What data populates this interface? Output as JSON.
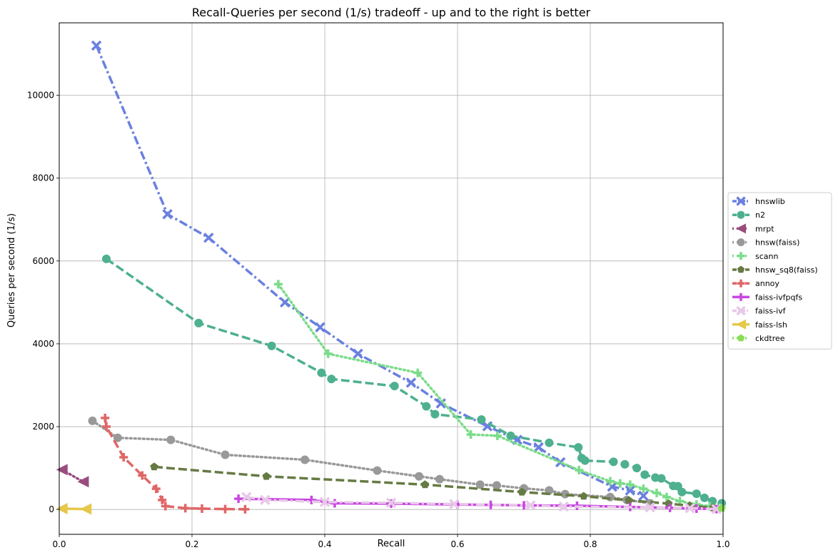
{
  "chart_data": {
    "type": "line",
    "title": "Recall-Queries per second (1/s) tradeoff - up and to the right is better",
    "xlabel": "Recall",
    "ylabel": "Queries per second (1/s)",
    "xlim": [
      0.0,
      1.0
    ],
    "ylim": [
      -600,
      11750
    ],
    "xticks": [
      0.0,
      0.2,
      0.4,
      0.6,
      0.8,
      1.0
    ],
    "xtick_labels": [
      "0.0",
      "0.2",
      "0.4",
      "0.6",
      "0.8",
      "1.0"
    ],
    "yticks": [
      0,
      2000,
      4000,
      6000,
      8000,
      10000
    ],
    "ytick_labels": [
      "0",
      "2000",
      "4000",
      "6000",
      "8000",
      "10000"
    ],
    "grid": true,
    "legend_position": "right",
    "series": [
      {
        "name": "hnswlib",
        "color": "#6a80e0",
        "dash": "dashdot",
        "marker": "x",
        "x": [
          0.056,
          0.163,
          0.225,
          0.34,
          0.393,
          0.45,
          0.53,
          0.575,
          0.645,
          0.69,
          0.722,
          0.755,
          0.833,
          0.86,
          0.88
        ],
        "y": [
          11200,
          7130,
          6560,
          5000,
          4400,
          3760,
          3060,
          2560,
          2010,
          1680,
          1500,
          1140,
          550,
          460,
          330
        ]
      },
      {
        "name": "n2",
        "color": "#4eb08f",
        "dash": "dashed",
        "marker": "circle",
        "x": [
          0.071,
          0.21,
          0.32,
          0.395,
          0.41,
          0.505,
          0.553,
          0.566,
          0.636,
          0.68,
          0.738,
          0.782,
          0.787,
          0.792,
          0.835,
          0.852,
          0.87,
          0.882,
          0.898,
          0.907,
          0.925,
          0.932,
          0.938,
          0.96,
          0.972,
          0.984,
          0.998
        ],
        "y": [
          6050,
          4500,
          3950,
          3300,
          3150,
          2980,
          2490,
          2300,
          2170,
          1780,
          1610,
          1500,
          1240,
          1180,
          1150,
          1090,
          1000,
          840,
          770,
          750,
          570,
          560,
          420,
          380,
          280,
          200,
          150
        ]
      },
      {
        "name": "mrpt",
        "color": "#9a4c7e",
        "dash": "dotted",
        "marker": "tri-left",
        "x": [
          0.004,
          0.036
        ],
        "y": [
          960,
          670
        ]
      },
      {
        "name": "hnsw(faiss)",
        "color": "#999999",
        "dash": "dotted",
        "marker": "circle",
        "x": [
          0.05,
          0.088,
          0.168,
          0.25,
          0.37,
          0.479,
          0.542,
          0.573,
          0.634,
          0.659,
          0.7,
          0.738,
          0.762,
          0.83,
          0.855,
          0.89
        ],
        "y": [
          2140,
          1730,
          1680,
          1320,
          1200,
          940,
          800,
          730,
          600,
          580,
          510,
          460,
          370,
          300,
          230,
          150
        ]
      },
      {
        "name": "scann",
        "color": "#7bdc8a",
        "dash": "dotted",
        "marker": "plus",
        "x": [
          0.33,
          0.405,
          0.54,
          0.62,
          0.66,
          0.783,
          0.83,
          0.845,
          0.86,
          0.88,
          0.9,
          0.915,
          0.935,
          0.96,
          0.98,
          0.995
        ],
        "y": [
          5440,
          3760,
          3300,
          1810,
          1780,
          950,
          680,
          630,
          600,
          500,
          400,
          300,
          200,
          120,
          80,
          40
        ]
      },
      {
        "name": "hnsw_sq8(faiss)",
        "color": "#667a43",
        "dash": "dashed",
        "marker": "pentagon",
        "x": [
          0.143,
          0.312,
          0.551,
          0.697,
          0.79,
          0.858,
          0.918,
          0.95,
          0.985
        ],
        "y": [
          1030,
          800,
          600,
          420,
          320,
          220,
          140,
          90,
          40
        ]
      },
      {
        "name": "annoy",
        "color": "#e06666",
        "dash": "dashed",
        "marker": "plus",
        "x": [
          0.069,
          0.071,
          0.097,
          0.125,
          0.146,
          0.155,
          0.16,
          0.19,
          0.215,
          0.25,
          0.28
        ],
        "y": [
          2210,
          2000,
          1260,
          820,
          500,
          230,
          80,
          30,
          20,
          10,
          5
        ]
      },
      {
        "name": "faiss-ivfpqfs",
        "color": "#c848e0",
        "dash": "solid",
        "marker": "plus",
        "x": [
          0.27,
          0.38,
          0.415,
          0.5,
          0.6,
          0.65,
          0.7,
          0.78,
          0.86,
          0.92,
          0.96,
          0.99
        ],
        "y": [
          260,
          230,
          150,
          140,
          120,
          110,
          100,
          90,
          60,
          40,
          20,
          10
        ]
      },
      {
        "name": "faiss-ivf",
        "color": "#e8c8e8",
        "dash": "dashdot",
        "marker": "x",
        "x": [
          0.282,
          0.31,
          0.4,
          0.5,
          0.595,
          0.71,
          0.76,
          0.89,
          0.95,
          0.99
        ],
        "y": [
          300,
          230,
          180,
          160,
          130,
          100,
          70,
          50,
          30,
          10
        ]
      },
      {
        "name": "faiss-lsh",
        "color": "#e6c84a",
        "dash": "solid",
        "marker": "tri-left",
        "x": [
          0.004,
          0.04
        ],
        "y": [
          20,
          10
        ]
      },
      {
        "name": "ckdtree",
        "color": "#88dd55",
        "dash": "dotted",
        "marker": "pentagon",
        "x": [
          0.998
        ],
        "y": [
          30
        ]
      }
    ]
  }
}
